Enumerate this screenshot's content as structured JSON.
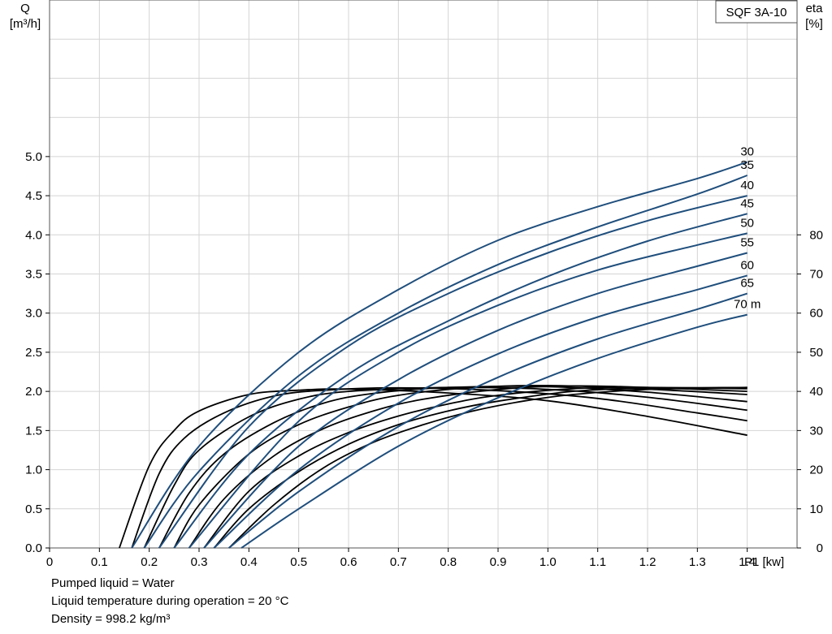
{
  "chart_data": {
    "type": "line",
    "title": "SQF 3A-10",
    "xlabel": "P1 [kw]",
    "ylabel_left_name": "Q",
    "ylabel_left_unit": "[m³/h]",
    "ylabel_right_name": "eta",
    "ylabel_right_unit": "[%]",
    "xlim": [
      0,
      1.5
    ],
    "ylim_left": [
      0,
      7
    ],
    "ylim_right": [
      0,
      140
    ],
    "x_ticks": [
      "0",
      "0.1",
      "0.2",
      "0.3",
      "0.4",
      "0.5",
      "0.6",
      "0.7",
      "0.8",
      "0.9",
      "1.0",
      "1.1",
      "1.2",
      "1.3",
      "1.4"
    ],
    "y_left_ticks": [
      "0.0",
      "0.5",
      "1.0",
      "1.5",
      "2.0",
      "2.5",
      "3.0",
      "3.5",
      "4.0",
      "4.5",
      "5.0"
    ],
    "y_right_ticks": [
      "0",
      "10",
      "20",
      "30",
      "40",
      "50",
      "60",
      "70",
      "80"
    ],
    "grid": true,
    "flow_series": [
      {
        "name": "30",
        "label": "30",
        "x": [
          0.165,
          0.3,
          0.5,
          0.7,
          0.9,
          1.1,
          1.3,
          1.4
        ],
        "values": [
          0.0,
          1.3,
          2.5,
          3.3,
          3.93,
          4.36,
          4.72,
          4.93
        ]
      },
      {
        "name": "35",
        "label": "35",
        "x": [
          0.19,
          0.3,
          0.5,
          0.7,
          0.9,
          1.1,
          1.3,
          1.4
        ],
        "values": [
          0.0,
          0.98,
          2.2,
          3.0,
          3.62,
          4.1,
          4.52,
          4.76
        ]
      },
      {
        "name": "40",
        "label": "40",
        "x": [
          0.22,
          0.4,
          0.6,
          0.8,
          1.0,
          1.2,
          1.4
        ],
        "values": [
          0.0,
          1.55,
          2.58,
          3.25,
          3.77,
          4.18,
          4.5
        ]
      },
      {
        "name": "45",
        "label": "45",
        "x": [
          0.25,
          0.4,
          0.6,
          0.8,
          1.0,
          1.2,
          1.4
        ],
        "values": [
          0.0,
          1.2,
          2.22,
          2.9,
          3.47,
          3.92,
          4.27
        ]
      },
      {
        "name": "50",
        "label": "50",
        "x": [
          0.28,
          0.5,
          0.7,
          0.9,
          1.1,
          1.3,
          1.4
        ],
        "values": [
          0.0,
          1.62,
          2.5,
          3.1,
          3.55,
          3.87,
          4.02
        ]
      },
      {
        "name": "55",
        "label": "55",
        "x": [
          0.31,
          0.5,
          0.7,
          0.9,
          1.1,
          1.3,
          1.4
        ],
        "values": [
          0.0,
          1.3,
          2.15,
          2.78,
          3.25,
          3.6,
          3.77
        ]
      },
      {
        "name": "60",
        "label": "60",
        "x": [
          0.33,
          0.5,
          0.7,
          0.9,
          1.1,
          1.3,
          1.4
        ],
        "values": [
          0.0,
          1.0,
          1.85,
          2.48,
          2.95,
          3.3,
          3.48
        ]
      },
      {
        "name": "65",
        "label": "65",
        "x": [
          0.36,
          0.5,
          0.7,
          0.9,
          1.1,
          1.3,
          1.4
        ],
        "values": [
          0.0,
          0.72,
          1.55,
          2.18,
          2.67,
          3.05,
          3.25
        ]
      },
      {
        "name": "70 m",
        "label": "70 m",
        "x": [
          0.385,
          0.5,
          0.7,
          0.9,
          1.1,
          1.3,
          1.4
        ],
        "values": [
          0.0,
          0.5,
          1.3,
          1.92,
          2.42,
          2.82,
          2.98
        ]
      }
    ],
    "efficiency_series": [
      {
        "x": [
          0.14,
          0.2,
          0.25,
          0.3,
          0.4,
          0.5,
          0.6,
          0.8,
          1.0,
          1.2,
          1.4
        ],
        "values": [
          0,
          21,
          30,
          35,
          39.2,
          40.3,
          40.6,
          39.6,
          37.6,
          33.6,
          28.8
        ]
      },
      {
        "x": [
          0.165,
          0.22,
          0.27,
          0.35,
          0.45,
          0.55,
          0.7,
          0.9,
          1.1,
          1.3,
          1.4
        ],
        "values": [
          0,
          19,
          28,
          34.5,
          38.8,
          40.3,
          40.9,
          40.2,
          38.2,
          34.5,
          32.5
        ]
      },
      {
        "x": [
          0.19,
          0.25,
          0.3,
          0.4,
          0.5,
          0.6,
          0.8,
          1.0,
          1.2,
          1.4
        ],
        "values": [
          0,
          16,
          25,
          33.5,
          38,
          40,
          41,
          40.5,
          38.5,
          35.2
        ]
      },
      {
        "x": [
          0.22,
          0.28,
          0.35,
          0.45,
          0.55,
          0.65,
          0.8,
          1.0,
          1.2,
          1.4
        ],
        "values": [
          0,
          14,
          24,
          32,
          37,
          39.5,
          41,
          41.2,
          39.8,
          37.4
        ]
      },
      {
        "x": [
          0.25,
          0.3,
          0.4,
          0.5,
          0.6,
          0.7,
          0.85,
          1.0,
          1.2,
          1.4
        ],
        "values": [
          0,
          11,
          24,
          31.5,
          36,
          39,
          41,
          41.5,
          40.6,
          39.2
        ]
      },
      {
        "x": [
          0.28,
          0.35,
          0.45,
          0.55,
          0.65,
          0.75,
          0.9,
          1.05,
          1.2,
          1.4
        ],
        "values": [
          0,
          12.5,
          23.5,
          30.5,
          35,
          38,
          40.5,
          41.4,
          41,
          40
        ]
      },
      {
        "x": [
          0.31,
          0.4,
          0.5,
          0.6,
          0.7,
          0.8,
          0.9,
          1.05,
          1.2,
          1.4
        ],
        "values": [
          0,
          14.5,
          23.5,
          29.5,
          33.7,
          36.8,
          39,
          40.7,
          41,
          40.7
        ]
      },
      {
        "x": [
          0.33,
          0.4,
          0.5,
          0.6,
          0.7,
          0.8,
          0.9,
          1.05,
          1.2,
          1.4
        ],
        "values": [
          0,
          10,
          19.5,
          26.5,
          31.5,
          35,
          37.5,
          40,
          40.8,
          41
        ]
      },
      {
        "x": [
          0.36,
          0.45,
          0.55,
          0.65,
          0.75,
          0.85,
          0.95,
          1.05,
          1.2,
          1.4
        ],
        "values": [
          0,
          11,
          20.5,
          27,
          31.5,
          35,
          37.5,
          39.2,
          40.5,
          41
        ]
      }
    ],
    "colors": {
      "flow": "#1f4e7c",
      "efficiency": "#000000",
      "grid": "#d4d4d4",
      "frame": "#555555"
    }
  },
  "notes": [
    "Pumped liquid = Water",
    "Liquid temperature during operation = 20 °C",
    "Density = 998.2 kg/m³"
  ]
}
